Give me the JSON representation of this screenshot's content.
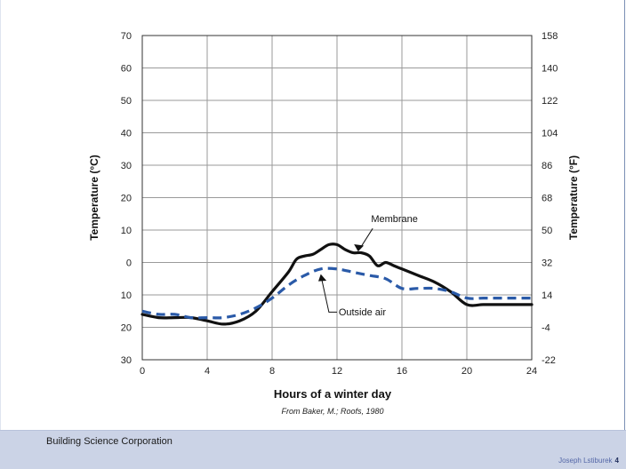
{
  "chart_data": {
    "type": "line",
    "xlabel": "Hours of a winter day",
    "caption": "From Baker, M.; Roofs, 1980",
    "ylabel_left": "Temperature (°C)",
    "ylabel_right": "Temperature (°F)",
    "xlim": [
      0,
      24
    ],
    "ylim": [
      -30,
      70
    ],
    "x_ticks": [
      0,
      4,
      8,
      12,
      16,
      20,
      24
    ],
    "left_ticks": [
      {
        "value": 70,
        "label": "70"
      },
      {
        "value": 60,
        "label": "60"
      },
      {
        "value": 50,
        "label": "50"
      },
      {
        "value": 40,
        "label": "40"
      },
      {
        "value": 30,
        "label": "30"
      },
      {
        "value": 20,
        "label": "20"
      },
      {
        "value": 10,
        "label": "10"
      },
      {
        "value": 0,
        "label": "0"
      },
      {
        "value": -10,
        "label": "10"
      },
      {
        "value": -20,
        "label": "20"
      },
      {
        "value": -30,
        "label": "30"
      }
    ],
    "right_ticks": [
      {
        "value": 70,
        "label": "158"
      },
      {
        "value": 60,
        "label": "140"
      },
      {
        "value": 50,
        "label": "122"
      },
      {
        "value": 40,
        "label": "104"
      },
      {
        "value": 30,
        "label": "86"
      },
      {
        "value": 20,
        "label": "68"
      },
      {
        "value": 10,
        "label": "50"
      },
      {
        "value": 0,
        "label": "32"
      },
      {
        "value": -10,
        "label": "14"
      },
      {
        "value": -20,
        "label": "-4"
      },
      {
        "value": -30,
        "label": "-22"
      }
    ],
    "grid": true,
    "series": [
      {
        "name": "Membrane",
        "style": "solid",
        "color": "#111111",
        "x": [
          0,
          1,
          2,
          3,
          4,
          5,
          6,
          7,
          8,
          9,
          9.5,
          10,
          10.5,
          11,
          11.5,
          12,
          12.5,
          13,
          13.5,
          14,
          14.5,
          15,
          15.5,
          16,
          17,
          18,
          19,
          20,
          21,
          22,
          23,
          24
        ],
        "y": [
          -16,
          -17,
          -17,
          -17,
          -18,
          -19,
          -18,
          -15,
          -9,
          -3,
          1,
          2,
          2.5,
          4,
          5.5,
          5.5,
          4,
          3,
          3,
          2,
          -1,
          0,
          -1,
          -2,
          -4,
          -6,
          -9,
          -13,
          -13,
          -13,
          -13,
          -13
        ]
      },
      {
        "name": "Outside air",
        "style": "dashed",
        "color": "#2a5aa8",
        "x": [
          0,
          1,
          2,
          3,
          4,
          5,
          6,
          7,
          8,
          9,
          10,
          11,
          12,
          13,
          14,
          15,
          16,
          17,
          18,
          19,
          20,
          21,
          22,
          23,
          24
        ],
        "y": [
          -15,
          -16,
          -16,
          -17,
          -17,
          -17,
          -16,
          -14,
          -11,
          -7,
          -4,
          -2,
          -2,
          -3,
          -4,
          -5,
          -8,
          -8,
          -8,
          -9,
          -11,
          -11,
          -11,
          -11,
          -11
        ]
      }
    ],
    "annotations": [
      {
        "text": "Membrane",
        "series": "Membrane"
      },
      {
        "text": "Outside air",
        "series": "Outside air"
      }
    ]
  },
  "footer": {
    "organization": "Building Science Corporation",
    "author": "Joseph Lstiburek",
    "page": "4"
  },
  "colors": {
    "grid": "#9a9a9a",
    "axis": "#333333",
    "footer_bg": "#cbd3e6"
  }
}
